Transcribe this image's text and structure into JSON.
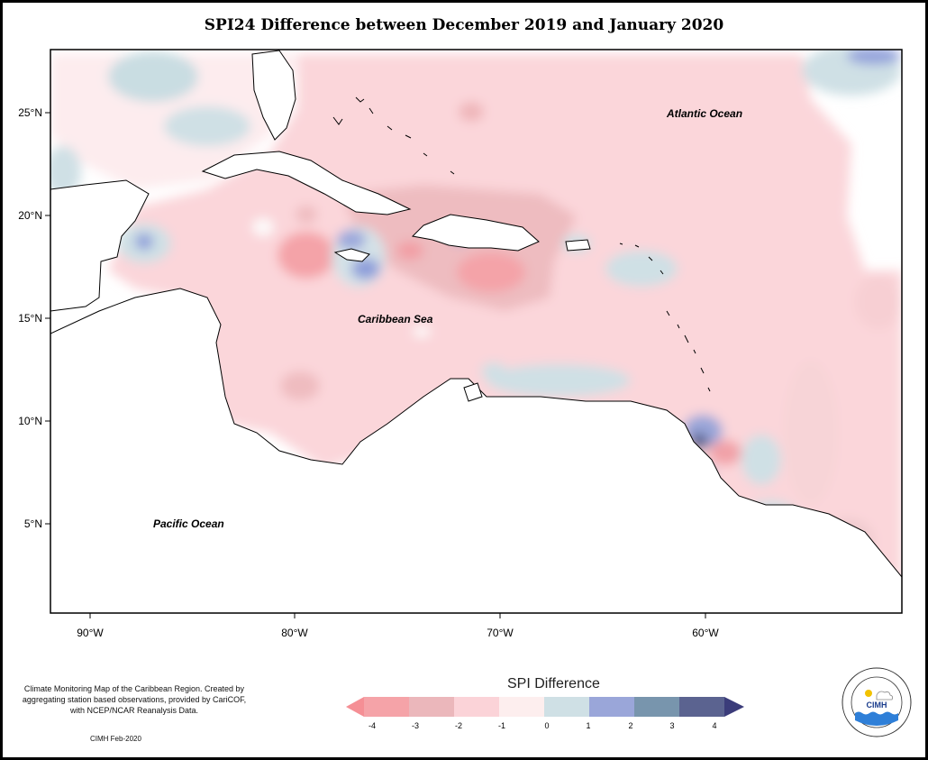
{
  "title": "SPI24 Difference between December 2019 and January 2020",
  "map": {
    "ocean_labels": [
      "Atlantic Ocean",
      "Caribbean Sea",
      "Pacific Ocean"
    ],
    "lat_labels": [
      "25°N",
      "20°N",
      "15°N",
      "10°N",
      "5°N"
    ],
    "lon_labels": [
      "90°W",
      "80°W",
      "70°W",
      "60°W"
    ]
  },
  "footer": {
    "description": "Climate Monitoring Map of the Caribbean Region. Created by aggregating station based observations, provided by CariCOF, with NCEP/NCAR Reanalysis Data.",
    "credit": "CIMH Feb-2020"
  },
  "legend": {
    "title": "SPI Difference",
    "ticks": [
      "-4",
      "-3",
      "-2",
      "-1",
      "0",
      "1",
      "2",
      "3",
      "4"
    ],
    "colors": [
      "#f58f95",
      "#e8b3b7",
      "#fbd3d8",
      "#fdeeee",
      "#cfe0e5",
      "#9aa6d9",
      "#7895ad",
      "#5b6390",
      "#3b3c7a"
    ]
  },
  "logo": {
    "text": "CIMH",
    "ring_text": "Caribbean Institute for Meteorology and Hydrology"
  }
}
